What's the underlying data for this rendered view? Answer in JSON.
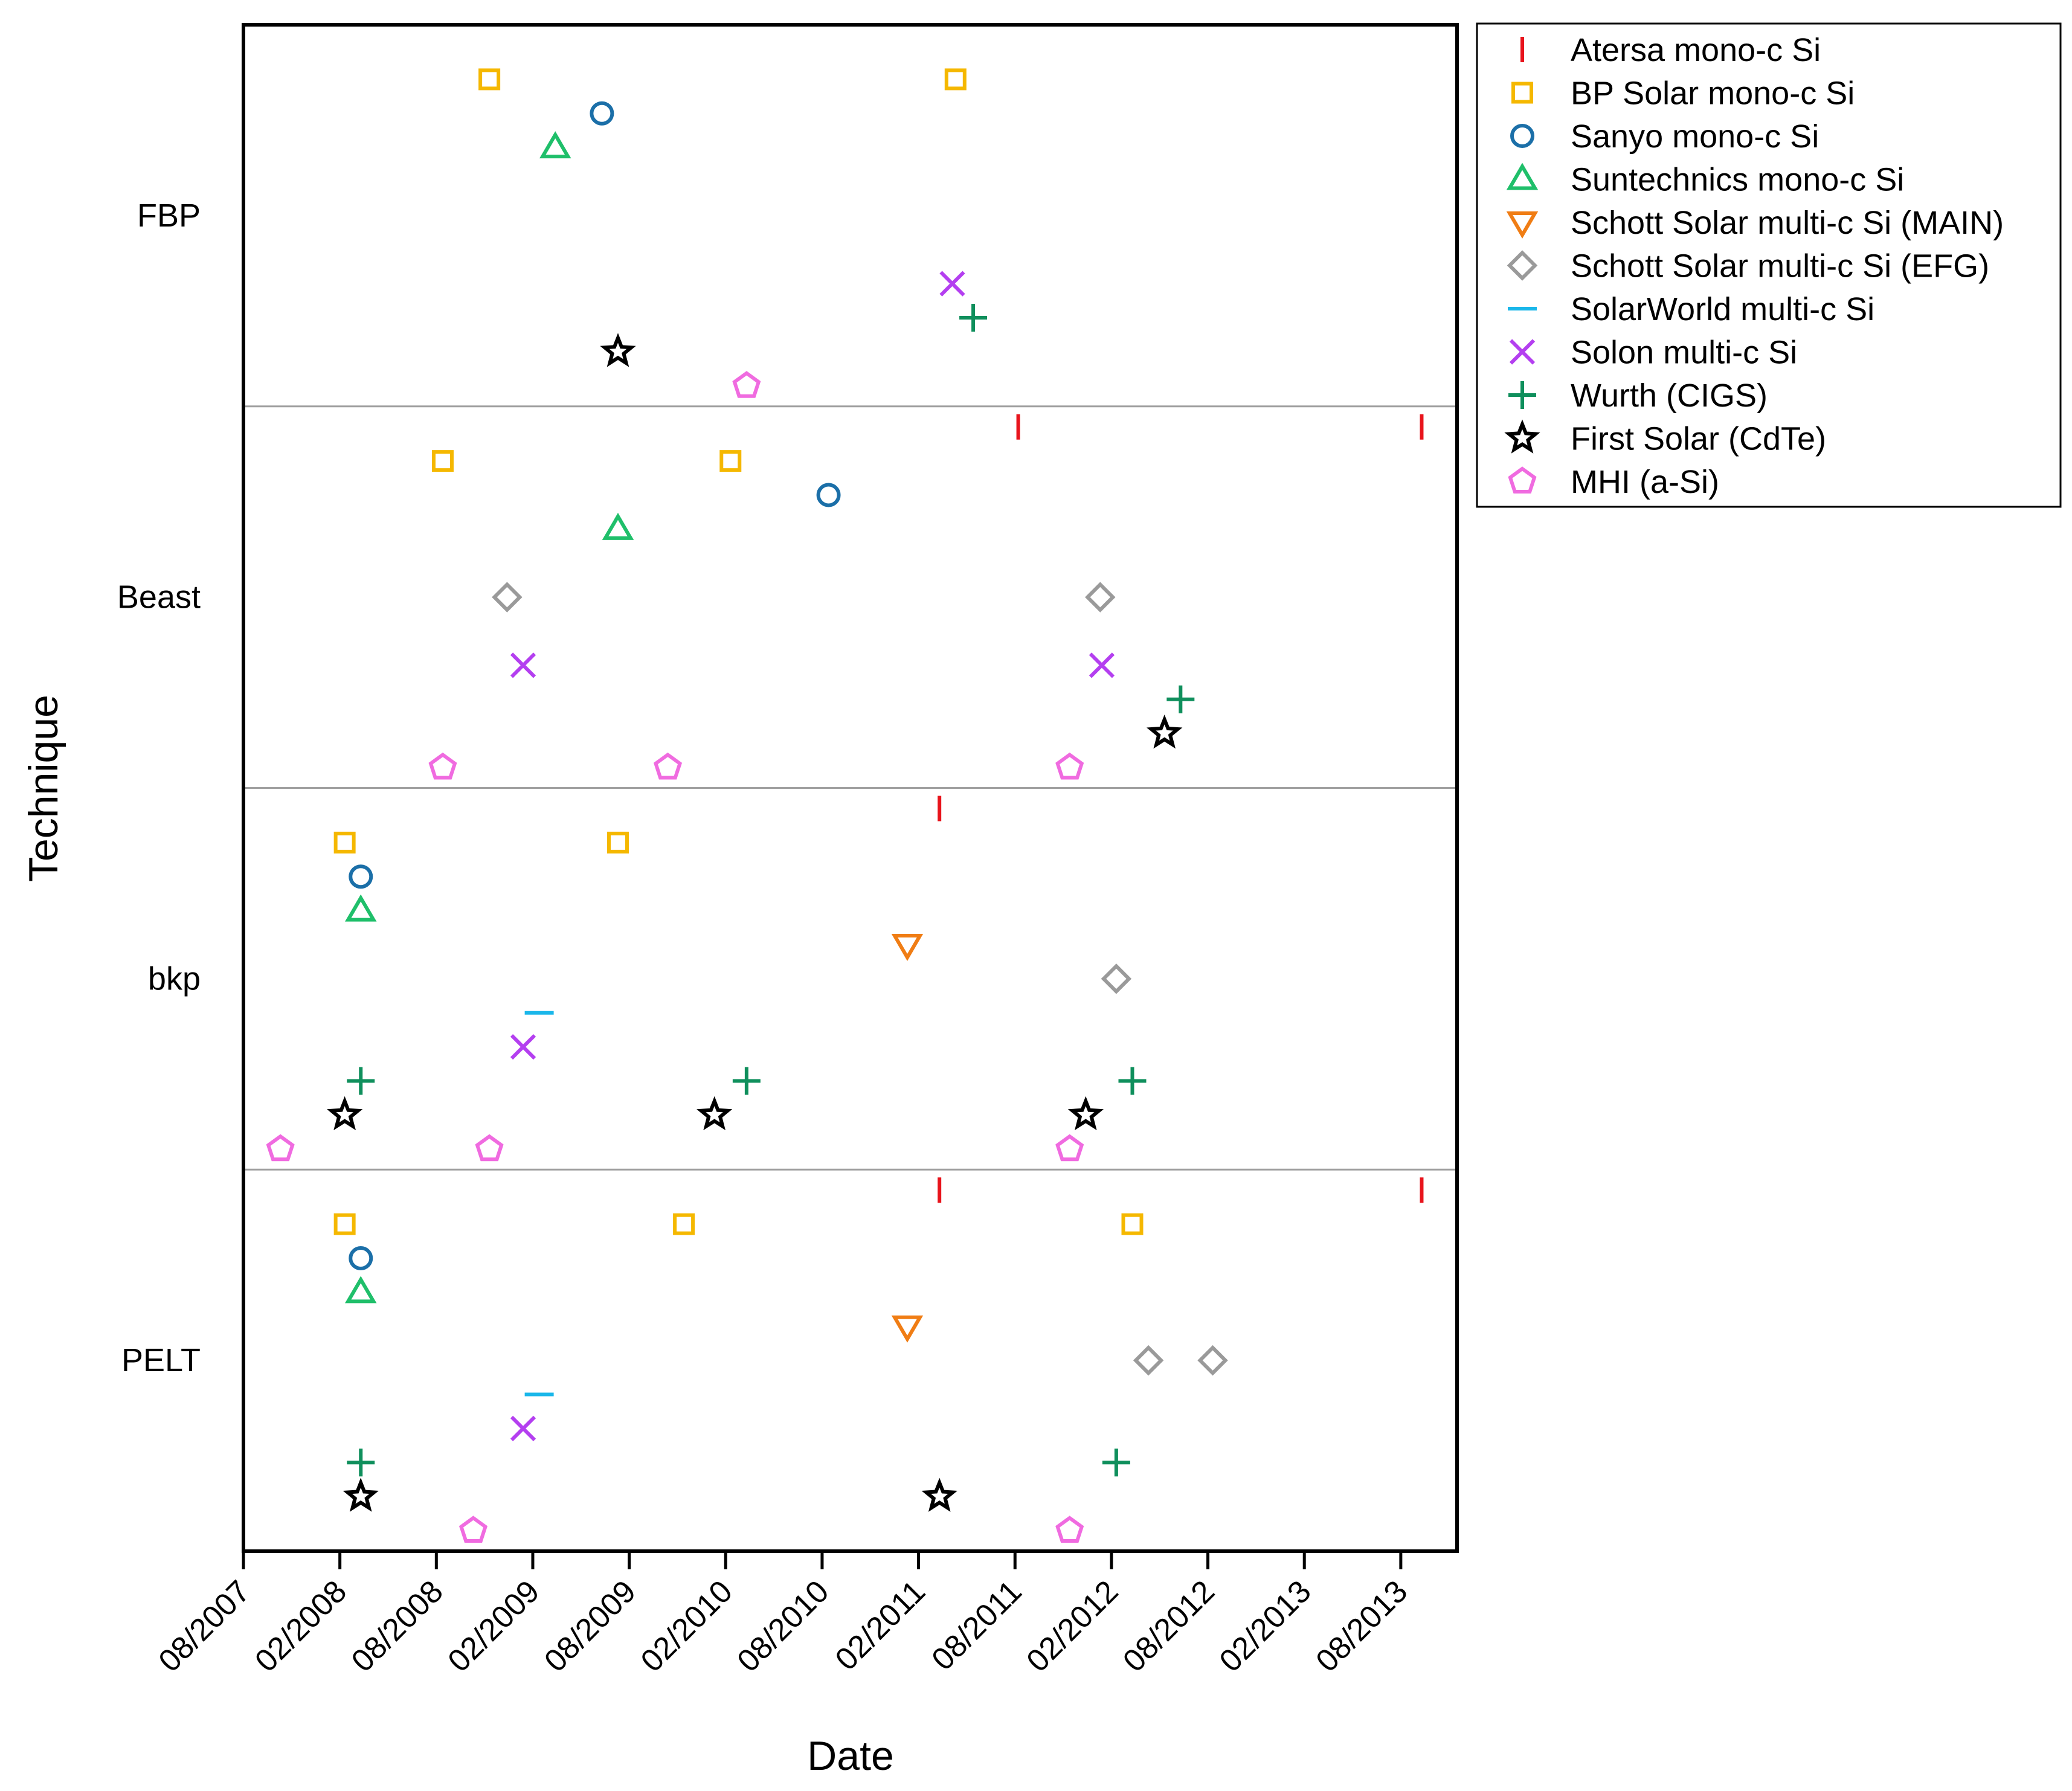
{
  "chart_data": {
    "type": "scatter",
    "title": "",
    "xlabel": "Date",
    "ylabel": "Technique",
    "x_unit": "months since 08/2007",
    "x_ticks": [
      {
        "label": "08/2007",
        "value": 0
      },
      {
        "label": "02/2008",
        "value": 6
      },
      {
        "label": "08/2008",
        "value": 12
      },
      {
        "label": "02/2009",
        "value": 18
      },
      {
        "label": "08/2009",
        "value": 24
      },
      {
        "label": "02/2010",
        "value": 30
      },
      {
        "label": "08/2010",
        "value": 36
      },
      {
        "label": "02/2011",
        "value": 42
      },
      {
        "label": "08/2011",
        "value": 48
      },
      {
        "label": "02/2012",
        "value": 54
      },
      {
        "label": "08/2012",
        "value": 60
      },
      {
        "label": "02/2013",
        "value": 66
      },
      {
        "label": "08/2013",
        "value": 72
      }
    ],
    "xlim": [
      0,
      75.5
    ],
    "categories": [
      "FBP",
      "Beast",
      "bkp",
      "PELT"
    ],
    "grid": false,
    "legend_position": "outside-right-top",
    "series": [
      {
        "name": "Atersa mono-c Si",
        "marker": "vbar",
        "color": "#e8141c",
        "points": [
          {
            "cat": "Beast",
            "x": 48.2
          },
          {
            "cat": "Beast",
            "x": 73.3
          },
          {
            "cat": "bkp",
            "x": 43.3
          },
          {
            "cat": "PELT",
            "x": 43.3
          },
          {
            "cat": "PELT",
            "x": 73.3
          }
        ]
      },
      {
        "name": "BP Solar mono-c Si",
        "marker": "square",
        "color": "#f5b800",
        "points": [
          {
            "cat": "FBP",
            "x": 15.3
          },
          {
            "cat": "FBP",
            "x": 44.3
          },
          {
            "cat": "Beast",
            "x": 12.4
          },
          {
            "cat": "Beast",
            "x": 30.3
          },
          {
            "cat": "bkp",
            "x": 6.3
          },
          {
            "cat": "bkp",
            "x": 23.3
          },
          {
            "cat": "PELT",
            "x": 6.3
          },
          {
            "cat": "PELT",
            "x": 27.4
          },
          {
            "cat": "PELT",
            "x": 55.3
          }
        ]
      },
      {
        "name": "Sanyo mono-c Si",
        "marker": "circle",
        "color": "#1b6fa8",
        "points": [
          {
            "cat": "FBP",
            "x": 22.3
          },
          {
            "cat": "Beast",
            "x": 36.4
          },
          {
            "cat": "bkp",
            "x": 7.3
          },
          {
            "cat": "PELT",
            "x": 7.3
          }
        ]
      },
      {
        "name": "Suntechnics mono-c Si",
        "marker": "triangle-up",
        "color": "#1fbf6a",
        "points": [
          {
            "cat": "FBP",
            "x": 19.4
          },
          {
            "cat": "Beast",
            "x": 23.3
          },
          {
            "cat": "bkp",
            "x": 7.3
          },
          {
            "cat": "PELT",
            "x": 7.3
          }
        ]
      },
      {
        "name": "Schott Solar multi-c Si (MAIN)",
        "marker": "triangle-down",
        "color": "#f07d14",
        "points": [
          {
            "cat": "bkp",
            "x": 41.3
          },
          {
            "cat": "PELT",
            "x": 41.3
          }
        ]
      },
      {
        "name": "Schott Solar multi-c Si (EFG)",
        "marker": "diamond",
        "color": "#9a9a9a",
        "points": [
          {
            "cat": "Beast",
            "x": 16.4
          },
          {
            "cat": "Beast",
            "x": 53.3
          },
          {
            "cat": "bkp",
            "x": 54.3
          },
          {
            "cat": "PELT",
            "x": 56.3
          },
          {
            "cat": "PELT",
            "x": 60.3
          }
        ]
      },
      {
        "name": "SolarWorld multi-c Si",
        "marker": "hbar",
        "color": "#1ab7ea",
        "points": [
          {
            "cat": "bkp",
            "x": 18.4
          },
          {
            "cat": "PELT",
            "x": 18.4
          }
        ]
      },
      {
        "name": "Solon multi-c Si",
        "marker": "cross",
        "color": "#b43ff0",
        "points": [
          {
            "cat": "FBP",
            "x": 44.1
          },
          {
            "cat": "Beast",
            "x": 17.4
          },
          {
            "cat": "Beast",
            "x": 53.4
          },
          {
            "cat": "bkp",
            "x": 17.4
          },
          {
            "cat": "PELT",
            "x": 17.4
          }
        ]
      },
      {
        "name": "Wurth (CIGS)",
        "marker": "plus",
        "color": "#0f8f5c",
        "points": [
          {
            "cat": "FBP",
            "x": 45.4
          },
          {
            "cat": "Beast",
            "x": 58.3
          },
          {
            "cat": "bkp",
            "x": 7.3
          },
          {
            "cat": "bkp",
            "x": 31.3
          },
          {
            "cat": "bkp",
            "x": 55.3
          },
          {
            "cat": "PELT",
            "x": 7.3
          },
          {
            "cat": "PELT",
            "x": 54.3
          }
        ]
      },
      {
        "name": "First Solar (CdTe)",
        "marker": "star",
        "color": "#000000",
        "points": [
          {
            "cat": "FBP",
            "x": 23.3
          },
          {
            "cat": "Beast",
            "x": 57.3
          },
          {
            "cat": "bkp",
            "x": 6.3
          },
          {
            "cat": "bkp",
            "x": 29.3
          },
          {
            "cat": "bkp",
            "x": 52.4
          },
          {
            "cat": "PELT",
            "x": 7.3
          },
          {
            "cat": "PELT",
            "x": 43.3
          }
        ]
      },
      {
        "name": "MHI (a-Si)",
        "marker": "pentagon",
        "color": "#f06be0",
        "points": [
          {
            "cat": "FBP",
            "x": 31.3
          },
          {
            "cat": "Beast",
            "x": 12.4
          },
          {
            "cat": "Beast",
            "x": 26.4
          },
          {
            "cat": "Beast",
            "x": 51.4
          },
          {
            "cat": "bkp",
            "x": 2.3
          },
          {
            "cat": "bkp",
            "x": 15.3
          },
          {
            "cat": "bkp",
            "x": 51.4
          },
          {
            "cat": "PELT",
            "x": 14.3
          },
          {
            "cat": "PELT",
            "x": 51.4
          }
        ]
      }
    ]
  }
}
